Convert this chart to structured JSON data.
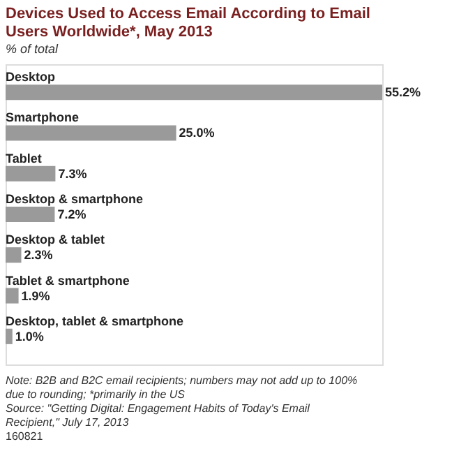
{
  "chart_data": {
    "type": "bar",
    "orientation": "horizontal",
    "title": "Devices Used to Access Email According to Email Users Worldwide*, May 2013",
    "subtitle": "% of total",
    "categories": [
      "Desktop",
      "Smartphone",
      "Tablet",
      "Desktop & smartphone",
      "Desktop & tablet",
      "Tablet & smartphone",
      "Desktop, tablet & smartphone"
    ],
    "values": [
      55.2,
      25.0,
      7.3,
      7.2,
      2.3,
      1.9,
      1.0
    ],
    "value_labels": [
      "55.2%",
      "25.0%",
      "7.3%",
      "7.2%",
      "2.3%",
      "1.9%",
      "1.0%"
    ],
    "color": "#9a9a9a",
    "annotations": [
      "Note: B2B and B2C email recipients; numbers may not add up to 100% due to rounding; *primarily in the US",
      "Source: \"Getting Digital: Engagement Habits of Today's Email Recipient,\" July 17, 2013",
      "160821"
    ]
  }
}
